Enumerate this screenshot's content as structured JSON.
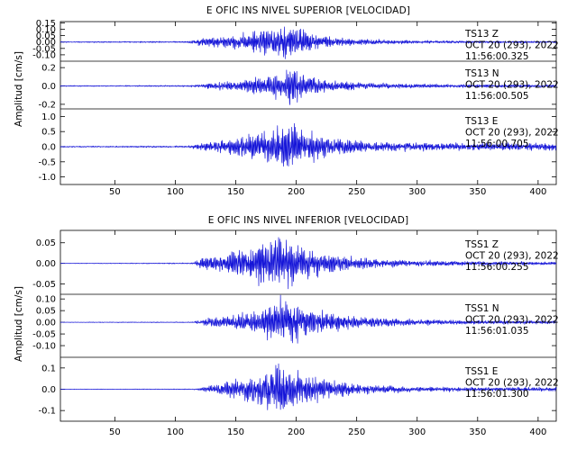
{
  "chart_data": [
    {
      "type": "line",
      "title": "E OFIC INS NIVEL SUPERIOR [VELOCIDAD]",
      "ylabel": "Amplitud [cm/s]",
      "xlabel": "",
      "xlim": [
        5,
        415
      ],
      "xticks": [
        "50",
        "100",
        "150",
        "200",
        "250",
        "300",
        "350",
        "400"
      ],
      "xtick_values": [
        50,
        100,
        150,
        200,
        250,
        300,
        350,
        400
      ],
      "color": "#1515d8",
      "traces": [
        {
          "station": "TS13",
          "component": "Z",
          "date": "OCT 20 (293), 2022",
          "time": "11:56:00.325",
          "ylim": [
            -0.15,
            0.16
          ],
          "yticks": [
            "0.15",
            "0.10",
            "0.05",
            "0.00",
            "-0.05",
            "-0.10"
          ],
          "ytick_values": [
            0.15,
            0.1,
            0.05,
            0.0,
            -0.05,
            -0.1
          ],
          "envelope": [
            [
              5,
              0.004
            ],
            [
              110,
              0.006
            ],
            [
              120,
              0.03
            ],
            [
              140,
              0.045
            ],
            [
              160,
              0.07
            ],
            [
              175,
              0.11
            ],
            [
              190,
              0.15
            ],
            [
              200,
              0.11
            ],
            [
              215,
              0.06
            ],
            [
              240,
              0.03
            ],
            [
              280,
              0.015
            ],
            [
              330,
              0.01
            ],
            [
              415,
              0.007
            ]
          ]
        },
        {
          "station": "TS13",
          "component": "N",
          "date": "OCT 20 (293), 2022",
          "time": "11:56:00.505",
          "ylim": [
            -0.25,
            0.27
          ],
          "yticks": [
            "0.2",
            "0.0",
            "-0.2"
          ],
          "ytick_values": [
            0.2,
            0.0,
            -0.2
          ],
          "envelope": [
            [
              5,
              0.005
            ],
            [
              110,
              0.008
            ],
            [
              125,
              0.03
            ],
            [
              150,
              0.06
            ],
            [
              180,
              0.12
            ],
            [
              195,
              0.24
            ],
            [
              205,
              0.14
            ],
            [
              225,
              0.07
            ],
            [
              260,
              0.035
            ],
            [
              300,
              0.022
            ],
            [
              350,
              0.018
            ],
            [
              415,
              0.015
            ]
          ]
        },
        {
          "station": "TS13",
          "component": "E",
          "date": "OCT 20 (293), 2022",
          "time": "11:56:00.705",
          "ylim": [
            -1.25,
            1.25
          ],
          "yticks": [
            "1.0",
            "0.5",
            "0.0",
            "-0.5",
            "-1.0"
          ],
          "ytick_values": [
            1.0,
            0.5,
            0.0,
            -0.5,
            -1.0
          ],
          "envelope": [
            [
              5,
              0.02
            ],
            [
              110,
              0.03
            ],
            [
              125,
              0.15
            ],
            [
              150,
              0.3
            ],
            [
              175,
              0.55
            ],
            [
              195,
              0.95
            ],
            [
              205,
              0.55
            ],
            [
              230,
              0.3
            ],
            [
              260,
              0.18
            ],
            [
              300,
              0.14
            ],
            [
              350,
              0.13
            ],
            [
              415,
              0.12
            ]
          ]
        }
      ]
    },
    {
      "type": "line",
      "title": "E OFIC INS NIVEL INFERIOR [VELOCIDAD]",
      "ylabel": "Amplitud [cm/s]",
      "xlabel": "",
      "xlim": [
        5,
        415
      ],
      "xticks": [
        "50",
        "100",
        "150",
        "200",
        "250",
        "300",
        "350",
        "400"
      ],
      "xtick_values": [
        50,
        100,
        150,
        200,
        250,
        300,
        350,
        400
      ],
      "color": "#1515d8",
      "traces": [
        {
          "station": "TSS1",
          "component": "Z",
          "date": "OCT 20 (293), 2022",
          "time": "11:56:00.255",
          "ylim": [
            -0.075,
            0.08
          ],
          "yticks": [
            "0.05",
            "0.00",
            "-0.05"
          ],
          "ytick_values": [
            0.05,
            0.0,
            -0.05
          ],
          "envelope": [
            [
              5,
              0.0006
            ],
            [
              115,
              0.0015
            ],
            [
              122,
              0.016
            ],
            [
              145,
              0.028
            ],
            [
              165,
              0.045
            ],
            [
              185,
              0.07
            ],
            [
              200,
              0.05
            ],
            [
              220,
              0.03
            ],
            [
              250,
              0.015
            ],
            [
              290,
              0.008
            ],
            [
              330,
              0.006
            ],
            [
              415,
              0.004
            ]
          ]
        },
        {
          "station": "TSS1",
          "component": "N",
          "date": "OCT 20 (293), 2022",
          "time": "11:56:01.035",
          "ylim": [
            -0.15,
            0.12
          ],
          "yticks": [
            "0.10",
            "0.05",
            "0.00",
            "-0.05",
            "-0.10"
          ],
          "ytick_values": [
            0.1,
            0.05,
            0.0,
            -0.05,
            -0.1
          ],
          "envelope": [
            [
              5,
              0.001
            ],
            [
              115,
              0.002
            ],
            [
              125,
              0.018
            ],
            [
              150,
              0.035
            ],
            [
              175,
              0.065
            ],
            [
              190,
              0.11
            ],
            [
              205,
              0.07
            ],
            [
              230,
              0.04
            ],
            [
              260,
              0.022
            ],
            [
              300,
              0.013
            ],
            [
              350,
              0.009
            ],
            [
              415,
              0.007
            ]
          ]
        },
        {
          "station": "TSS1",
          "component": "E",
          "date": "OCT 20 (293), 2022",
          "time": "11:56:01.300",
          "ylim": [
            -0.15,
            0.15
          ],
          "yticks": [
            "0.1",
            "0.0",
            "-0.1"
          ],
          "ytick_values": [
            0.1,
            0.0,
            -0.1
          ],
          "envelope": [
            [
              5,
              0.001
            ],
            [
              115,
              0.002
            ],
            [
              130,
              0.02
            ],
            [
              155,
              0.05
            ],
            [
              175,
              0.09
            ],
            [
              188,
              0.14
            ],
            [
              205,
              0.08
            ],
            [
              230,
              0.04
            ],
            [
              260,
              0.022
            ],
            [
              300,
              0.013
            ],
            [
              350,
              0.01
            ],
            [
              415,
              0.008
            ]
          ]
        }
      ]
    }
  ]
}
